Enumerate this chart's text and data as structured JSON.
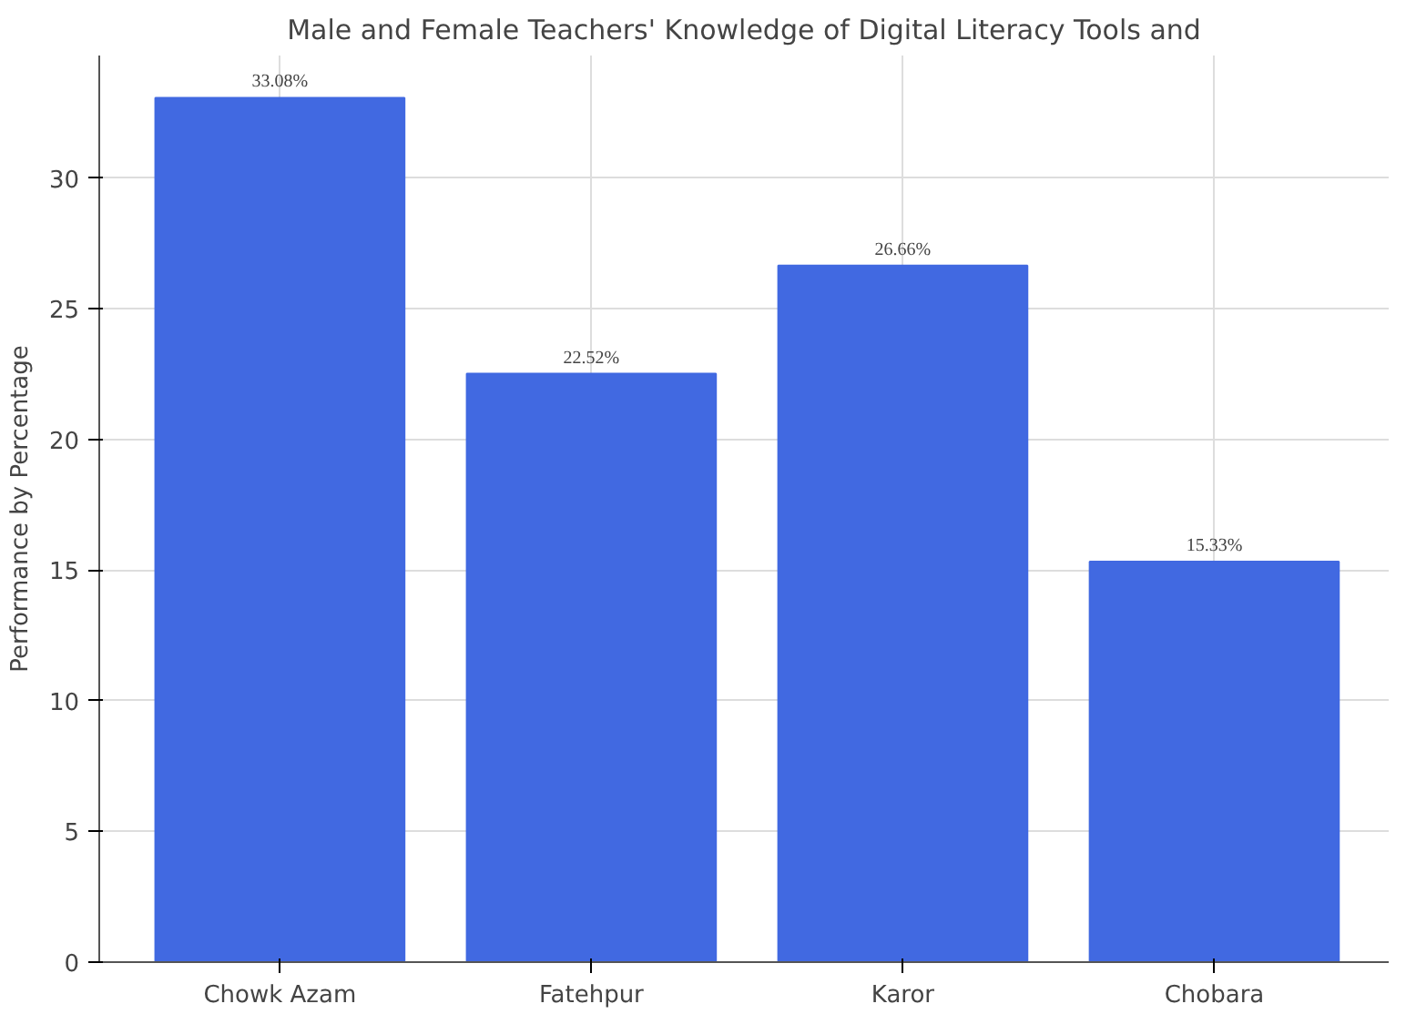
{
  "chart_data": {
    "type": "bar",
    "title": "Male and Female Teachers' Knowledge of Digital Literacy Tools and",
    "ylabel": "Performance by Percentage",
    "categories": [
      "Chowk Azam",
      "Fatehpur",
      "Karor",
      "Chobara"
    ],
    "values": [
      33.08,
      22.52,
      26.66,
      15.33
    ],
    "value_labels": [
      "33.08%",
      "22.52%",
      "26.66%",
      "15.33%"
    ],
    "color": "#4169e1",
    "ylim": [
      0,
      34.7
    ],
    "yticks": [
      0,
      5,
      10,
      15,
      20,
      25,
      30
    ],
    "grid": true
  }
}
